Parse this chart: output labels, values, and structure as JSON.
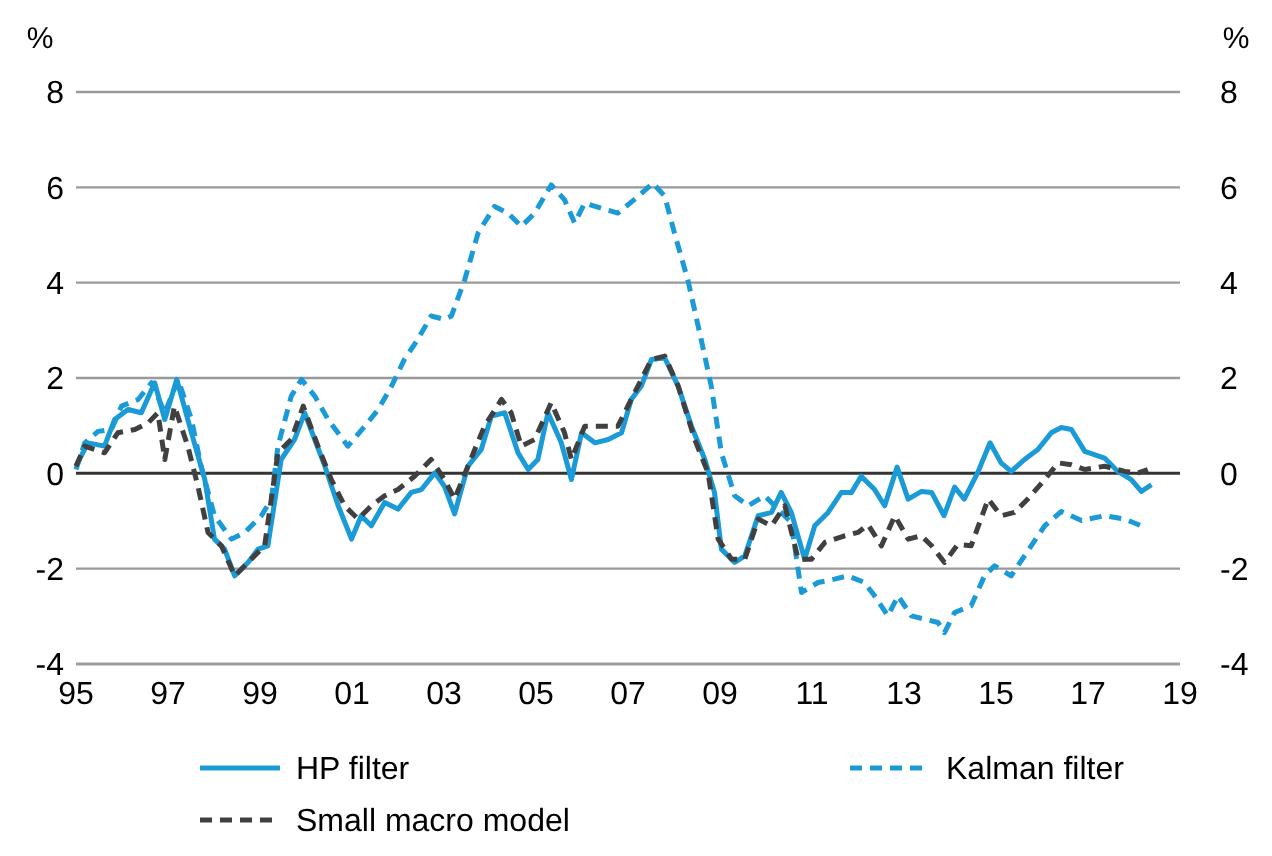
{
  "chart_data": {
    "type": "line",
    "ylabel": "%",
    "y2label": "%",
    "xlim": [
      1995,
      2019
    ],
    "xticks": [
      {
        "value": 1995,
        "label": "95"
      },
      {
        "value": 1997,
        "label": "97"
      },
      {
        "value": 1999,
        "label": "99"
      },
      {
        "value": 2001,
        "label": "01"
      },
      {
        "value": 2003,
        "label": "03"
      },
      {
        "value": 2005,
        "label": "05"
      },
      {
        "value": 2007,
        "label": "07"
      },
      {
        "value": 2009,
        "label": "09"
      },
      {
        "value": 2011,
        "label": "11"
      },
      {
        "value": 2013,
        "label": "13"
      },
      {
        "value": 2015,
        "label": "15"
      },
      {
        "value": 2017,
        "label": "17"
      },
      {
        "value": 2019,
        "label": "19"
      }
    ],
    "ylim": [
      -4,
      8
    ],
    "yticks": [
      -4,
      -2,
      0,
      2,
      4,
      6,
      8
    ],
    "y2lim": [
      -4,
      8
    ],
    "y2ticks": [
      -4,
      -2,
      0,
      2,
      4,
      6,
      8
    ],
    "grid": "y",
    "legend": "bottom",
    "marker": "none",
    "series": [
      {
        "name": "HP filter",
        "color": "#1a9ad6",
        "line_style": "solid",
        "x": [
          1995.0,
          1995.26,
          1995.62,
          1995.84,
          1996.13,
          1996.42,
          1996.71,
          1996.93,
          1997.19,
          1997.51,
          1997.8,
          1998.01,
          1998.23,
          1998.45,
          1998.74,
          1998.96,
          1999.17,
          1999.46,
          1999.75,
          1999.97,
          2000.19,
          2000.41,
          2000.7,
          2000.99,
          2001.2,
          2001.42,
          2001.71,
          2002.0,
          2002.29,
          2002.51,
          2002.8,
          2003.01,
          2003.23,
          2003.52,
          2003.81,
          2004.03,
          2004.32,
          2004.61,
          2004.83,
          2005.04,
          2005.26,
          2005.55,
          2005.77,
          2005.99,
          2006.28,
          2006.57,
          2006.86,
          2007.07,
          2007.29,
          2007.51,
          2007.8,
          2008.09,
          2008.38,
          2008.67,
          2008.88,
          2009.03,
          2009.32,
          2009.54,
          2009.83,
          2010.12,
          2010.33,
          2010.55,
          2010.84,
          2011.06,
          2011.35,
          2011.64,
          2011.86,
          2012.07,
          2012.36,
          2012.58,
          2012.85,
          2013.09,
          2013.38,
          2013.6,
          2013.87,
          2014.1,
          2014.31,
          2014.6,
          2014.87,
          2015.11,
          2015.33,
          2015.62,
          2015.91,
          2016.2,
          2016.42,
          2016.64,
          2016.93,
          2017.36,
          2017.65,
          2017.94,
          2018.16,
          2018.38
        ],
        "values": [
          0.15,
          0.64,
          0.57,
          1.13,
          1.34,
          1.27,
          1.9,
          1.13,
          1.97,
          0.85,
          -0.13,
          -1.38,
          -1.59,
          -2.15,
          -1.87,
          -1.59,
          -1.52,
          0.29,
          0.71,
          1.27,
          0.71,
          0.15,
          -0.68,
          -1.38,
          -0.89,
          -1.1,
          -0.61,
          -0.75,
          -0.4,
          -0.34,
          0.01,
          -0.27,
          -0.85,
          0.15,
          0.5,
          1.2,
          1.27,
          0.43,
          0.08,
          0.29,
          1.27,
          0.64,
          -0.13,
          0.85,
          0.64,
          0.71,
          0.85,
          1.55,
          1.83,
          2.39,
          2.42,
          1.83,
          0.99,
          0.29,
          -0.4,
          -1.59,
          -1.87,
          -1.73,
          -0.89,
          -0.82,
          -0.4,
          -0.82,
          -1.8,
          -1.1,
          -0.82,
          -0.4,
          -0.4,
          -0.06,
          -0.34,
          -0.68,
          0.13,
          -0.54,
          -0.38,
          -0.4,
          -0.89,
          -0.29,
          -0.54,
          0.01,
          0.64,
          0.22,
          0.04,
          0.29,
          0.5,
          0.85,
          0.96,
          0.92,
          0.46,
          0.32,
          0.04,
          -0.13,
          -0.38,
          -0.24
        ]
      },
      {
        "name": "Kalman filter",
        "color": "#1a9ad6",
        "line_style": "dashed",
        "x": [
          1995.0,
          1995.19,
          1995.48,
          1995.77,
          1995.99,
          1996.35,
          1996.64,
          1996.93,
          1997.22,
          1997.51,
          1997.72,
          1998.01,
          1998.38,
          1998.67,
          1999.03,
          1999.25,
          1999.39,
          1999.68,
          1999.9,
          2000.19,
          2000.48,
          2000.91,
          2001.28,
          2001.57,
          2001.86,
          2002.14,
          2002.43,
          2002.72,
          2003.01,
          2003.16,
          2003.45,
          2003.74,
          2004.1,
          2004.39,
          2004.68,
          2004.97,
          2005.33,
          2005.62,
          2005.84,
          2006.06,
          2006.42,
          2006.78,
          2007.22,
          2007.54,
          2007.8,
          2008.01,
          2008.3,
          2008.59,
          2008.81,
          2009.03,
          2009.32,
          2009.61,
          2009.97,
          2010.26,
          2010.55,
          2010.77,
          2011.13,
          2011.49,
          2011.78,
          2012.14,
          2012.36,
          2012.65,
          2012.87,
          2013.16,
          2013.45,
          2013.74,
          2013.88,
          2014.1,
          2014.46,
          2014.75,
          2014.97,
          2015.33,
          2015.62,
          2016.06,
          2016.42,
          2016.86,
          2017.36,
          2017.8,
          2018.23
        ],
        "values": [
          0.08,
          0.64,
          0.88,
          0.92,
          1.41,
          1.55,
          1.9,
          1.27,
          1.97,
          1.13,
          0.15,
          -0.89,
          -1.38,
          -1.24,
          -0.89,
          -0.54,
          0.57,
          1.62,
          1.97,
          1.62,
          1.13,
          0.57,
          0.99,
          1.34,
          1.83,
          2.39,
          2.81,
          3.3,
          3.23,
          3.3,
          4.06,
          5.04,
          5.6,
          5.46,
          5.18,
          5.46,
          6.05,
          5.74,
          5.25,
          5.67,
          5.56,
          5.46,
          5.81,
          6.09,
          5.81,
          5.04,
          4.06,
          2.81,
          1.83,
          0.43,
          -0.47,
          -0.68,
          -0.47,
          -0.75,
          -1.03,
          -2.5,
          -2.29,
          -2.22,
          -2.15,
          -2.29,
          -2.57,
          -2.99,
          -2.57,
          -2.99,
          -3.06,
          -3.13,
          -3.34,
          -2.92,
          -2.78,
          -2.15,
          -1.94,
          -2.15,
          -1.73,
          -1.1,
          -0.8,
          -0.99,
          -0.89,
          -0.96,
          -1.13
        ]
      },
      {
        "name": "Small macro model",
        "color": "#404040",
        "line_style": "dashed",
        "x": [
          1995.0,
          1995.19,
          1995.62,
          1995.91,
          1996.28,
          1996.57,
          1996.78,
          1996.93,
          1997.14,
          1997.43,
          1997.65,
          1997.87,
          1998.16,
          1998.45,
          1998.81,
          1999.1,
          1999.39,
          1999.68,
          1999.94,
          2000.26,
          2000.55,
          2000.84,
          2001.13,
          2001.42,
          2001.71,
          2002.0,
          2002.36,
          2002.72,
          2003.01,
          2003.23,
          2003.52,
          2003.88,
          2004.25,
          2004.46,
          2004.68,
          2004.97,
          2005.33,
          2005.62,
          2005.77,
          2006.06,
          2006.49,
          2006.78,
          2007.07,
          2007.29,
          2007.51,
          2007.8,
          2008.09,
          2008.45,
          2008.74,
          2008.96,
          2009.25,
          2009.54,
          2009.83,
          2010.12,
          2010.41,
          2010.7,
          2010.99,
          2011.28,
          2011.71,
          2012.0,
          2012.22,
          2012.51,
          2012.8,
          2013.09,
          2013.38,
          2013.6,
          2013.88,
          2014.17,
          2014.46,
          2014.83,
          2015.11,
          2015.4,
          2015.69,
          2016.06,
          2016.35,
          2016.64,
          2016.93,
          2017.36,
          2017.8,
          2018.09,
          2018.3
        ],
        "values": [
          0.15,
          0.57,
          0.43,
          0.85,
          0.92,
          1.06,
          1.27,
          0.29,
          1.41,
          0.57,
          -0.27,
          -1.24,
          -1.52,
          -2.15,
          -1.8,
          -1.52,
          0.43,
          0.71,
          1.41,
          0.57,
          -0.13,
          -0.68,
          -0.96,
          -0.68,
          -0.47,
          -0.34,
          -0.06,
          0.29,
          -0.13,
          -0.54,
          0.15,
          0.99,
          1.55,
          1.27,
          0.57,
          0.71,
          1.48,
          0.85,
          0.29,
          0.99,
          0.99,
          0.99,
          1.55,
          1.97,
          2.39,
          2.46,
          1.83,
          0.71,
          0.01,
          -1.38,
          -1.8,
          -1.8,
          -0.96,
          -1.1,
          -0.68,
          -1.8,
          -1.8,
          -1.45,
          -1.31,
          -1.24,
          -1.08,
          -1.52,
          -0.89,
          -1.38,
          -1.31,
          -1.52,
          -1.87,
          -1.49,
          -1.52,
          -0.54,
          -0.89,
          -0.82,
          -0.54,
          -0.13,
          0.22,
          0.18,
          0.08,
          0.15,
          0.04,
          0.01,
          0.08
        ]
      }
    ]
  }
}
